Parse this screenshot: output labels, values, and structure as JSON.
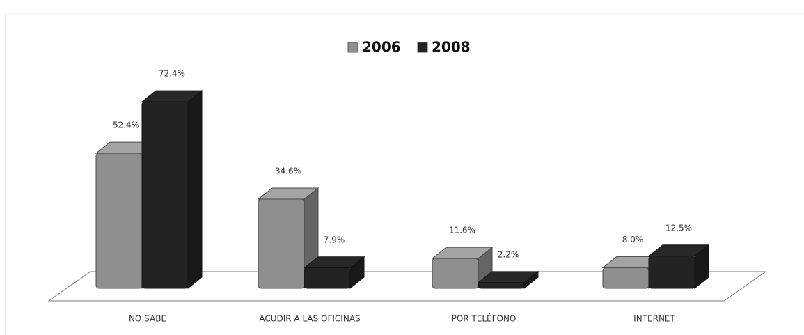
{
  "chart_data": {
    "type": "bar3d",
    "categories": [
      "NO SABE",
      "ACUDIR A LAS OFICINAS",
      "POR TELÉFONO",
      "INTERNET"
    ],
    "series": [
      {
        "name": "2006",
        "color": "#8f8f8f",
        "values": [
          52.4,
          34.6,
          11.6,
          8.0
        ],
        "value_labels": [
          "52.4%",
          "34.6%",
          "11.6%",
          "8.0%"
        ]
      },
      {
        "name": "2008",
        "color": "#232323",
        "values": [
          72.4,
          7.9,
          2.2,
          12.5
        ],
        "value_labels": [
          "72.4%",
          "7.9%",
          "2.2%",
          "12.5%"
        ]
      }
    ],
    "legend": "top"
  }
}
